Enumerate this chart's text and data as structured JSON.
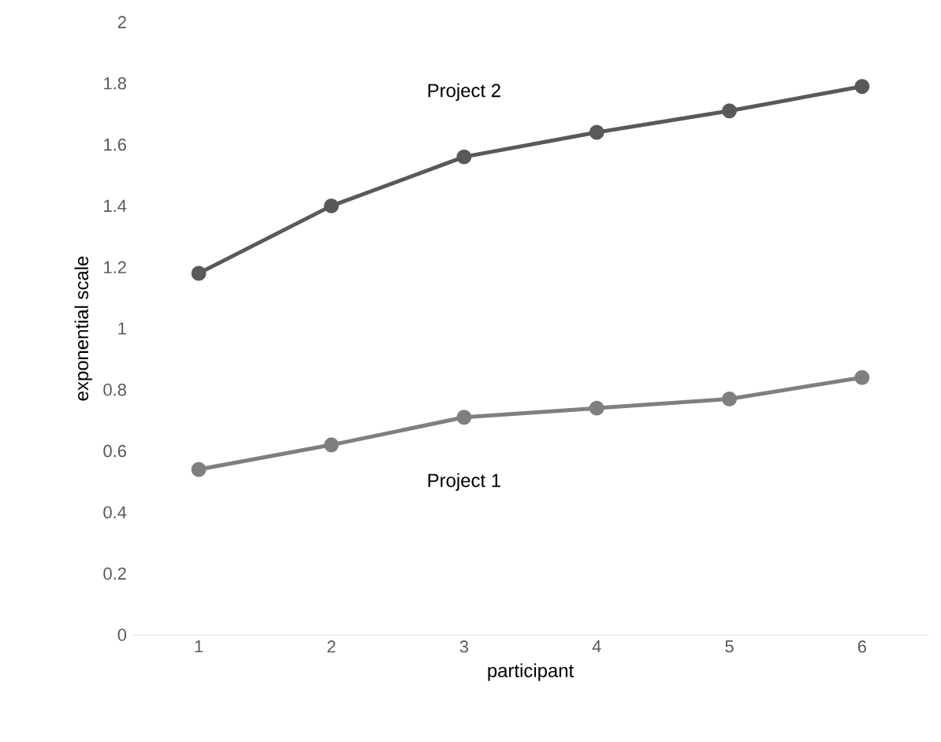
{
  "chart_data": {
    "type": "line",
    "xlabel": "participant",
    "ylabel": "exponential scale",
    "categories": [
      "1",
      "2",
      "3",
      "4",
      "5",
      "6"
    ],
    "series": [
      {
        "name": "Project 1",
        "color": "#7f7f7f",
        "values": [
          0.54,
          0.62,
          0.71,
          0.74,
          0.77,
          0.84
        ]
      },
      {
        "name": "Project 2",
        "color": "#595959",
        "values": [
          1.18,
          1.4,
          1.56,
          1.64,
          1.71,
          1.79
        ]
      }
    ],
    "ylim": [
      0,
      2
    ],
    "yticks": [
      0,
      0.2,
      0.4,
      0.6,
      0.8,
      1,
      1.2,
      1.4,
      1.6,
      1.8,
      2
    ],
    "marker": "circle",
    "line_style": "solid",
    "grid": false,
    "legend": false
  }
}
